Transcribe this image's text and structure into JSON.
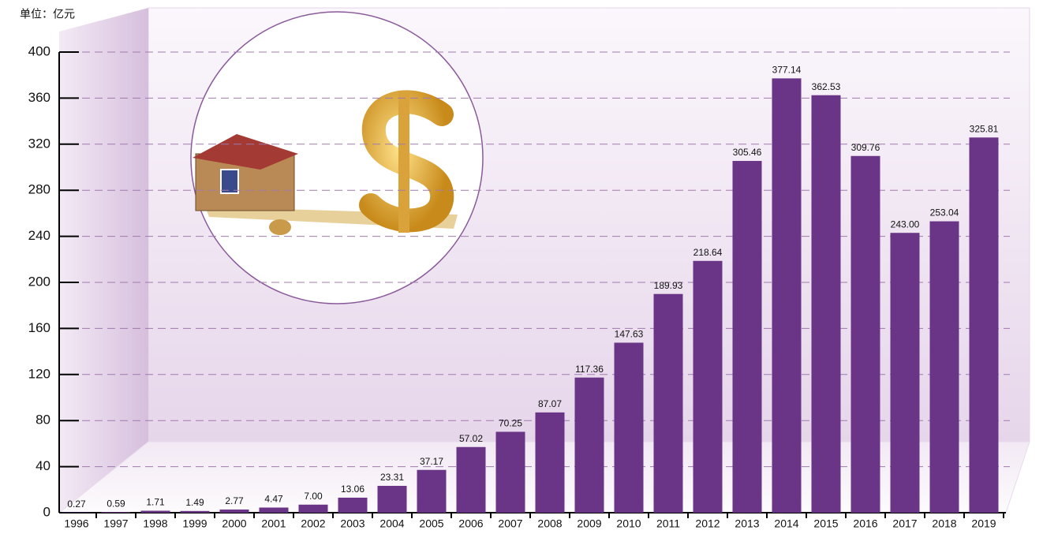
{
  "chart_data": {
    "type": "bar",
    "unit_label": "单位：亿元",
    "categories": [
      "1996",
      "1997",
      "1998",
      "1999",
      "2000",
      "2001",
      "2002",
      "2003",
      "2004",
      "2005",
      "2006",
      "2007",
      "2008",
      "2009",
      "2010",
      "2011",
      "2012",
      "2013",
      "2014",
      "2015",
      "2016",
      "2017",
      "2018",
      "2019"
    ],
    "values": [
      0.27,
      0.59,
      1.71,
      1.49,
      2.77,
      4.47,
      7,
      13.06,
      23.31,
      37.17,
      57.02,
      70.25,
      87.07,
      117.36,
      147.63,
      189.93,
      218.64,
      305.46,
      377.14,
      362.53,
      309.76,
      243,
      253.04,
      325.81
    ],
    "value_labels": [
      "0.27",
      "0.59",
      "1.71",
      "1.49",
      "2.77",
      "4.47",
      "7.00",
      "13.06",
      "23.31",
      "37.17",
      "57.02",
      "70.25",
      "87.07",
      "117.36",
      "147.63",
      "189.93",
      "218.64",
      "305.46",
      "377.14",
      "362.53",
      "309.76",
      "243.00",
      "253.04",
      "325.81"
    ],
    "color": "#6a3587",
    "ylim": [
      0,
      400
    ],
    "yticks": [
      0,
      40,
      80,
      120,
      160,
      200,
      240,
      280,
      320,
      360,
      400
    ],
    "grid": true
  }
}
